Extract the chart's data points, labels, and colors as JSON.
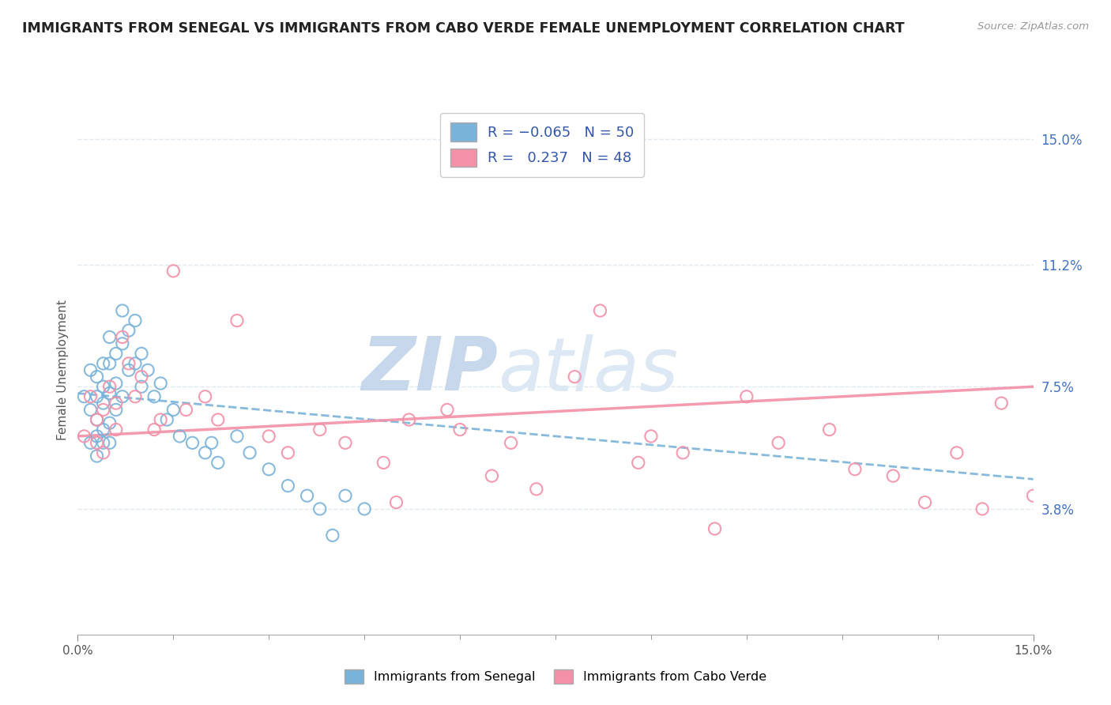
{
  "title": "IMMIGRANTS FROM SENEGAL VS IMMIGRANTS FROM CABO VERDE FEMALE UNEMPLOYMENT CORRELATION CHART",
  "source": "Source: ZipAtlas.com",
  "ylabel": "Female Unemployment",
  "xlim": [
    0.0,
    0.15
  ],
  "ylim": [
    0.0,
    0.16
  ],
  "right_yticks": [
    0.038,
    0.075,
    0.112,
    0.15
  ],
  "right_yticklabels": [
    "3.8%",
    "7.5%",
    "11.2%",
    "15.0%"
  ],
  "bottom_legend": [
    "Immigrants from Senegal",
    "Immigrants from Cabo Verde"
  ],
  "senegal_color": "#7ab3d9",
  "caboverde_color": "#f490a8",
  "bg_color": "#ffffff",
  "grid_color": "#e0e8f0",
  "watermark_zip_color": "#c8d8ec",
  "watermark_atlas_color": "#dce8f4",
  "senegal_x": [
    0.001,
    0.002,
    0.002,
    0.002,
    0.003,
    0.003,
    0.003,
    0.003,
    0.003,
    0.004,
    0.004,
    0.004,
    0.004,
    0.004,
    0.005,
    0.005,
    0.005,
    0.005,
    0.005,
    0.006,
    0.006,
    0.006,
    0.007,
    0.007,
    0.007,
    0.008,
    0.008,
    0.009,
    0.009,
    0.01,
    0.01,
    0.011,
    0.012,
    0.013,
    0.014,
    0.015,
    0.016,
    0.018,
    0.02,
    0.021,
    0.022,
    0.025,
    0.027,
    0.03,
    0.033,
    0.036,
    0.038,
    0.04,
    0.042,
    0.045
  ],
  "senegal_y": [
    0.072,
    0.08,
    0.068,
    0.058,
    0.078,
    0.072,
    0.065,
    0.06,
    0.054,
    0.082,
    0.075,
    0.07,
    0.062,
    0.058,
    0.09,
    0.082,
    0.073,
    0.064,
    0.058,
    0.085,
    0.076,
    0.068,
    0.098,
    0.088,
    0.072,
    0.092,
    0.08,
    0.095,
    0.082,
    0.085,
    0.075,
    0.08,
    0.072,
    0.076,
    0.065,
    0.068,
    0.06,
    0.058,
    0.055,
    0.058,
    0.052,
    0.06,
    0.055,
    0.05,
    0.045,
    0.042,
    0.038,
    0.03,
    0.042,
    0.038
  ],
  "caboverde_x": [
    0.001,
    0.002,
    0.003,
    0.003,
    0.004,
    0.004,
    0.005,
    0.006,
    0.006,
    0.007,
    0.008,
    0.009,
    0.01,
    0.012,
    0.013,
    0.015,
    0.017,
    0.02,
    0.022,
    0.025,
    0.03,
    0.033,
    0.038,
    0.042,
    0.048,
    0.05,
    0.052,
    0.058,
    0.06,
    0.065,
    0.068,
    0.072,
    0.078,
    0.082,
    0.088,
    0.09,
    0.095,
    0.1,
    0.105,
    0.11,
    0.118,
    0.122,
    0.128,
    0.133,
    0.138,
    0.142,
    0.145,
    0.15
  ],
  "caboverde_y": [
    0.06,
    0.072,
    0.065,
    0.058,
    0.068,
    0.055,
    0.075,
    0.07,
    0.062,
    0.09,
    0.082,
    0.072,
    0.078,
    0.062,
    0.065,
    0.11,
    0.068,
    0.072,
    0.065,
    0.095,
    0.06,
    0.055,
    0.062,
    0.058,
    0.052,
    0.04,
    0.065,
    0.068,
    0.062,
    0.048,
    0.058,
    0.044,
    0.078,
    0.098,
    0.052,
    0.06,
    0.055,
    0.032,
    0.072,
    0.058,
    0.062,
    0.05,
    0.048,
    0.04,
    0.055,
    0.038,
    0.07,
    0.042
  ],
  "senegal_trend_x": [
    0.0,
    0.15
  ],
  "senegal_trend_y": [
    0.073,
    0.047
  ],
  "caboverde_trend_x": [
    0.0,
    0.15
  ],
  "caboverde_trend_y": [
    0.06,
    0.075
  ]
}
